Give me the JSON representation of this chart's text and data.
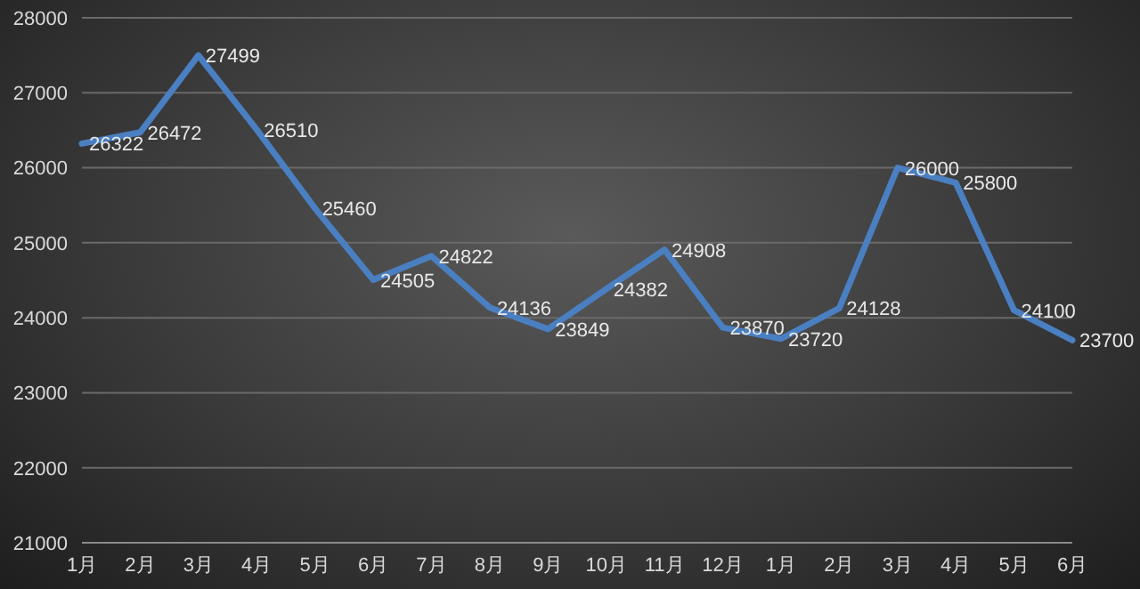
{
  "chart_data": {
    "type": "line",
    "categories": [
      "1月",
      "2月",
      "3月",
      "4月",
      "5月",
      "6月",
      "7月",
      "8月",
      "9月",
      "10月",
      "11月",
      "12月",
      "1月",
      "2月",
      "3月",
      "4月",
      "5月",
      "6月"
    ],
    "series": [
      {
        "color": "#4a7fc1",
        "values": [
          26322,
          26472,
          27499,
          26510,
          25460,
          24505,
          24822,
          24136,
          23849,
          24382,
          24908,
          23870,
          23720,
          24128,
          26000,
          25800,
          24100,
          23700
        ]
      }
    ],
    "ylim": [
      21000,
      28000
    ],
    "yticks": [
      21000,
      22000,
      23000,
      24000,
      25000,
      26000,
      27000,
      28000
    ],
    "grid": "y",
    "data_labels": true
  }
}
